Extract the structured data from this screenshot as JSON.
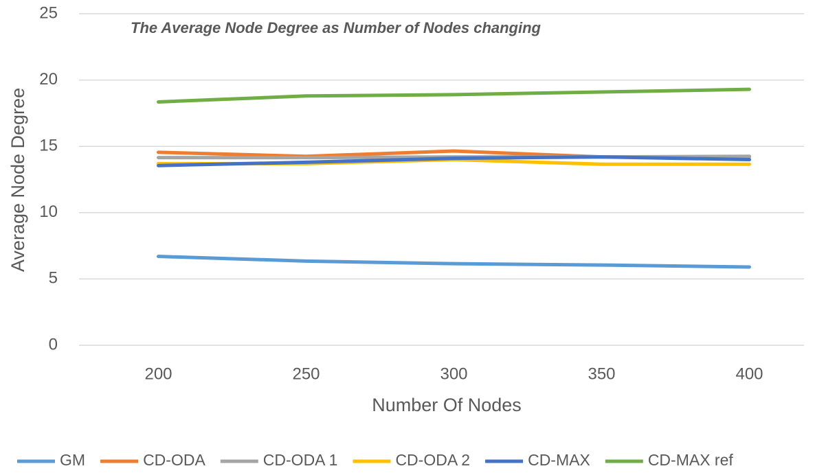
{
  "chart_data": {
    "type": "line",
    "title": "The Average Node Degree as Number of Nodes changing",
    "x_label": "Number Of Nodes",
    "y_label": "Average Node Degree",
    "categories": [
      "200",
      "250",
      "300",
      "350",
      "400"
    ],
    "series": [
      {
        "name": "GM",
        "color": "#5b9bd5",
        "values": [
          6.7,
          6.35,
          6.15,
          6.05,
          5.9
        ]
      },
      {
        "name": "CD-ODA",
        "color": "#ed7d31",
        "values": [
          14.55,
          14.25,
          14.65,
          14.2,
          14.2
        ]
      },
      {
        "name": "CD-ODA 1",
        "color": "#a5a5a5",
        "values": [
          14.15,
          14.15,
          14.2,
          14.2,
          14.25
        ]
      },
      {
        "name": "CD-ODA 2",
        "color": "#ffc000",
        "values": [
          13.7,
          13.7,
          14.0,
          13.65,
          13.65
        ]
      },
      {
        "name": "CD-MAX",
        "color": "#4472c4",
        "values": [
          13.55,
          13.8,
          14.1,
          14.2,
          14.0
        ]
      },
      {
        "name": "CD-MAX ref",
        "color": "#70ad47",
        "values": [
          18.35,
          18.8,
          18.9,
          19.1,
          19.3
        ]
      }
    ],
    "ylim": [
      0,
      25
    ],
    "yticks": [
      0,
      5,
      10,
      15,
      20,
      25
    ],
    "grid": true,
    "legend": "bottom"
  }
}
